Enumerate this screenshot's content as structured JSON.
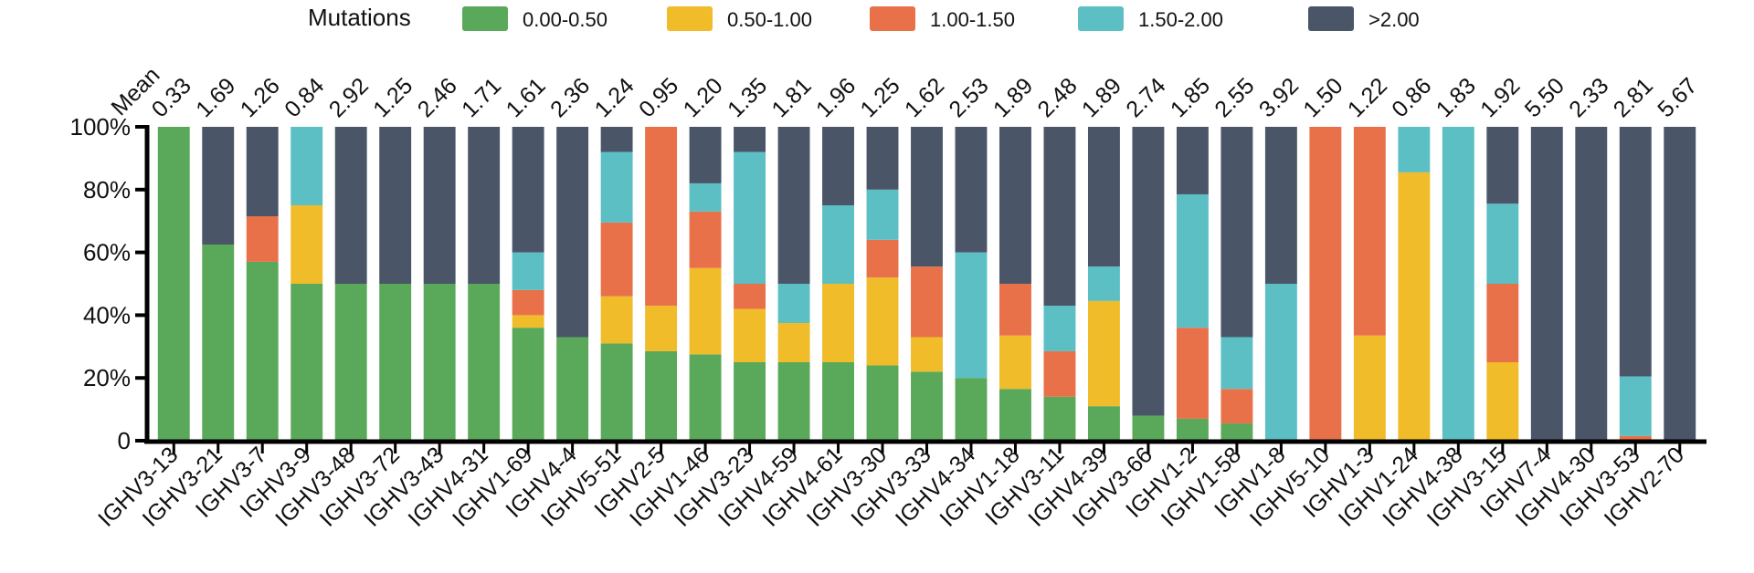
{
  "chart_data": {
    "type": "bar",
    "stacked": true,
    "legend": {
      "title": "Mutations",
      "position": "top",
      "items": [
        {
          "label": "0.00-0.50",
          "color": "#5aa95a"
        },
        {
          "label": "0.50-1.00",
          "color": "#f0bc2a"
        },
        {
          "label": "1.00-1.50",
          "color": "#e8714a"
        },
        {
          "label": "1.50-2.00",
          "color": "#5cbfc4"
        },
        {
          "label": ">2.00",
          "color": "#4a5568"
        }
      ]
    },
    "mean_title": "Mean",
    "categories": [
      "IGHV3-13",
      "IGHV3-21",
      "IGHV3-7",
      "IGHV3-9",
      "IGHV3-48",
      "IGHV3-72",
      "IGHV3-43",
      "IGHV4-31",
      "IGHV1-69",
      "IGHV4-4",
      "IGHV5-51",
      "IGHV2-5",
      "IGHV1-46",
      "IGHV3-23",
      "IGHV4-59",
      "IGHV4-61",
      "IGHV3-30",
      "IGHV3-33",
      "IGHV4-34",
      "IGHV1-18",
      "IGHV3-11",
      "IGHV4-39",
      "IGHV3-66",
      "IGHV1-2",
      "IGHV1-58",
      "IGHV1-8",
      "IGHV5-10",
      "IGHV1-3",
      "IGHV1-24",
      "IGHV4-38",
      "IGHV3-15",
      "IGHV7-4",
      "IGHV4-30",
      "IGHV3-53",
      "IGHV2-70"
    ],
    "means": [
      "0.33",
      "1.69",
      "1.26",
      "0.84",
      "2.92",
      "1.25",
      "2.46",
      "1.71",
      "1.61",
      "2.36",
      "1.24",
      "0.95",
      "1.20",
      "1.35",
      "1.81",
      "1.96",
      "1.25",
      "1.62",
      "2.53",
      "1.89",
      "2.48",
      "1.89",
      "2.74",
      "1.85",
      "2.55",
      "3.92",
      "1.50",
      "1.22",
      "0.86",
      "1.83",
      "1.92",
      "5.50",
      "2.33",
      "2.81",
      "5.67"
    ],
    "series": [
      {
        "name": "0.00-0.50",
        "color": "#5aa95a",
        "values": [
          100,
          62.5,
          57,
          50,
          50,
          50,
          50,
          50,
          36,
          33,
          31,
          28.5,
          27.5,
          25,
          25,
          25,
          24,
          22,
          20,
          16.5,
          14,
          11,
          8,
          7,
          5.5,
          0,
          0,
          0,
          0,
          0,
          0,
          0,
          0,
          0,
          0
        ]
      },
      {
        "name": "0.50-1.00",
        "color": "#f0bc2a",
        "values": [
          0,
          0,
          0,
          25,
          0,
          0,
          0,
          0,
          4,
          0,
          15,
          14.5,
          27.5,
          17,
          12.5,
          25,
          28,
          11,
          0,
          17,
          0,
          33.5,
          0,
          0,
          0,
          0,
          0,
          33.5,
          85.5,
          0,
          25,
          0,
          0,
          0,
          0
        ]
      },
      {
        "name": "1.00-1.50",
        "color": "#e8714a",
        "values": [
          0,
          0,
          14.5,
          0,
          0,
          0,
          0,
          0,
          8,
          0,
          23.5,
          57,
          18,
          8,
          0,
          0,
          12,
          22.5,
          0,
          16.5,
          14.5,
          0,
          0,
          29,
          11,
          0,
          100,
          66.5,
          0,
          0,
          25,
          0,
          0,
          1.5,
          0
        ]
      },
      {
        "name": "1.50-2.00",
        "color": "#5cbfc4",
        "values": [
          0,
          0,
          0,
          25,
          0,
          0,
          0,
          0,
          12,
          0,
          22.5,
          0,
          9,
          42,
          12.5,
          25,
          16,
          0,
          40,
          0,
          14.5,
          11,
          0,
          42.5,
          16.5,
          50,
          0,
          0,
          14.5,
          100,
          25.5,
          0,
          0,
          19,
          0
        ]
      },
      {
        "name": ">2.00",
        "color": "#4a5568",
        "values": [
          0,
          37.5,
          28.5,
          0,
          50,
          50,
          50,
          50,
          40,
          67,
          8,
          0,
          18,
          8,
          50,
          25,
          20,
          44.5,
          40,
          50,
          57,
          44.5,
          92,
          21.5,
          67,
          50,
          0,
          0,
          0,
          0,
          24.5,
          100,
          100,
          79.5,
          100
        ]
      }
    ],
    "y_ticks": [
      "0",
      "20%",
      "40%",
      "60%",
      "80%",
      "100%"
    ],
    "ylim": [
      0,
      100
    ],
    "xlabel": "",
    "ylabel": "",
    "grid": false
  }
}
